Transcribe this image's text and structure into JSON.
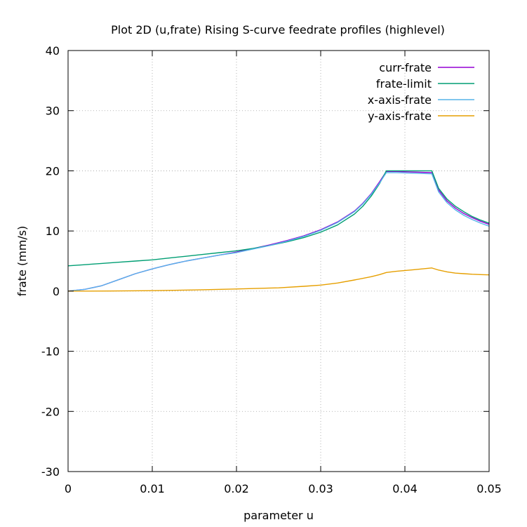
{
  "chart_data": {
    "type": "line",
    "title": "Plot 2D (u,frate) Rising S-curve feedrate profiles (highlevel)",
    "xlabel": "parameter u",
    "ylabel": "frate (mm/s)",
    "xlim": [
      0,
      0.05
    ],
    "ylim": [
      -30,
      40
    ],
    "x_ticks": [
      0,
      0.01,
      0.02,
      0.03,
      0.04,
      0.05
    ],
    "x_tick_labels": [
      "0",
      "0.01",
      "0.02",
      "0.03",
      "0.04",
      "0.05"
    ],
    "y_ticks": [
      -30,
      -20,
      -10,
      0,
      10,
      20,
      30,
      40
    ],
    "y_tick_labels": [
      "-30",
      "-20",
      "-10",
      "0",
      "10",
      "20",
      "30",
      "40"
    ],
    "grid": true,
    "legend_position": "top-right",
    "series": [
      {
        "name": "curr-frate",
        "color": "#9400d3",
        "x": [
          0,
          0.002,
          0.004,
          0.006,
          0.008,
          0.01,
          0.012,
          0.014,
          0.016,
          0.018,
          0.02,
          0.022,
          0.024,
          0.026,
          0.028,
          0.03,
          0.032,
          0.034,
          0.035,
          0.036,
          0.037,
          0.0378,
          0.039,
          0.041,
          0.0432,
          0.044,
          0.045,
          0.046,
          0.047,
          0.048,
          0.049,
          0.05
        ],
        "y": [
          0.0,
          0.3,
          0.9,
          1.9,
          2.9,
          3.7,
          4.4,
          5.0,
          5.5,
          6.0,
          6.5,
          7.1,
          7.7,
          8.4,
          9.2,
          10.2,
          11.5,
          13.3,
          14.6,
          16.2,
          18.2,
          19.9,
          19.9,
          19.8,
          19.7,
          16.8,
          15.0,
          13.8,
          12.9,
          12.2,
          11.6,
          11.1
        ]
      },
      {
        "name": "frate-limit",
        "color": "#009e73",
        "x": [
          0,
          0.002,
          0.004,
          0.006,
          0.008,
          0.01,
          0.012,
          0.014,
          0.016,
          0.018,
          0.02,
          0.022,
          0.024,
          0.026,
          0.028,
          0.03,
          0.032,
          0.034,
          0.035,
          0.036,
          0.037,
          0.0378,
          0.039,
          0.041,
          0.0432,
          0.044,
          0.045,
          0.046,
          0.047,
          0.048,
          0.049,
          0.05
        ],
        "y": [
          4.2,
          4.4,
          4.6,
          4.8,
          5.0,
          5.2,
          5.5,
          5.8,
          6.1,
          6.4,
          6.7,
          7.1,
          7.6,
          8.2,
          8.9,
          9.8,
          11.0,
          12.8,
          14.1,
          15.8,
          17.9,
          20.0,
          20.0,
          20.0,
          20.0,
          17.1,
          15.3,
          14.1,
          13.2,
          12.4,
          11.8,
          11.3
        ]
      },
      {
        "name": "x-axis-frate",
        "color": "#56b4e9",
        "x": [
          0,
          0.002,
          0.004,
          0.006,
          0.008,
          0.01,
          0.012,
          0.014,
          0.016,
          0.018,
          0.02,
          0.022,
          0.024,
          0.026,
          0.028,
          0.03,
          0.032,
          0.034,
          0.035,
          0.036,
          0.037,
          0.0378,
          0.039,
          0.041,
          0.0432,
          0.044,
          0.045,
          0.046,
          0.047,
          0.048,
          0.049,
          0.05
        ],
        "y": [
          0.0,
          0.3,
          0.9,
          1.9,
          2.9,
          3.7,
          4.4,
          5.0,
          5.5,
          6.0,
          6.4,
          7.0,
          7.6,
          8.3,
          9.1,
          10.1,
          11.4,
          13.2,
          14.5,
          16.1,
          18.0,
          19.7,
          19.7,
          19.6,
          19.5,
          16.5,
          14.7,
          13.5,
          12.6,
          11.9,
          11.3,
          10.8
        ]
      },
      {
        "name": "y-axis-frate",
        "color": "#e69f00",
        "x": [
          0,
          0.005,
          0.01,
          0.015,
          0.02,
          0.025,
          0.028,
          0.03,
          0.032,
          0.034,
          0.036,
          0.037,
          0.0378,
          0.039,
          0.041,
          0.0432,
          0.044,
          0.045,
          0.046,
          0.047,
          0.048,
          0.049,
          0.05
        ],
        "y": [
          0.0,
          0.02,
          0.08,
          0.2,
          0.35,
          0.55,
          0.8,
          1.0,
          1.35,
          1.85,
          2.4,
          2.75,
          3.1,
          3.3,
          3.55,
          3.85,
          3.5,
          3.2,
          3.0,
          2.9,
          2.8,
          2.75,
          2.7
        ]
      }
    ]
  }
}
